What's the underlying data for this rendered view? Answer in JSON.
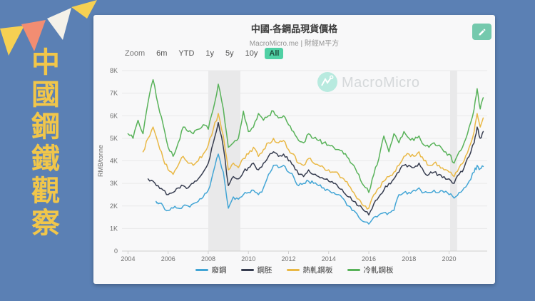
{
  "page": {
    "background_color": "#5b80b4"
  },
  "banner": {
    "text": "中國鋼鐵觀察",
    "text_color": "#f1c64a",
    "flag_colors": [
      "#f6d052",
      "#f28d72",
      "#f4f1e9",
      "#f6d052"
    ]
  },
  "card": {
    "title": "中國-各鋼品現貨價格",
    "subtitle": "MacroMicro.me | 財經M平方",
    "edit_button_color": "#74c9ad"
  },
  "icons": {
    "edit": "pencil-icon",
    "watermark_logo": "macromicro-logo-icon",
    "legend_swatch": "line-swatch-icon"
  },
  "toolbar": {
    "zoom_label": "Zoom",
    "ranges": [
      "6m",
      "YTD",
      "1y",
      "5y",
      "10y",
      "All"
    ],
    "active_range": "All",
    "active_bg": "#50d0a4"
  },
  "watermark": {
    "text": "MacroMicro",
    "logo_color": "#a8e6d8",
    "text_color": "#d5d8da"
  },
  "chart_data": {
    "type": "line",
    "title": "中國-各鋼品現貨價格",
    "source": "MacroMicro.me | 財經M平方",
    "xlabel": "",
    "ylabel": "RMB/tonne",
    "unit": "RMB/tonne",
    "ylim": [
      0,
      8000
    ],
    "ytick_labels": [
      "0",
      "1K",
      "2K",
      "3K",
      "4K",
      "5K",
      "6K",
      "7K",
      "8K"
    ],
    "xlim": [
      2003.7,
      2021.9
    ],
    "xticks": [
      2004,
      2006,
      2008,
      2010,
      2012,
      2014,
      2016,
      2018,
      2020
    ],
    "grid": "horizontal",
    "legend_position": "bottom",
    "recession_bands": [
      [
        2008.0,
        2009.6
      ],
      [
        2020.05,
        2020.4
      ]
    ],
    "series": [
      {
        "name": "廢鋼",
        "color": "#42a5d5",
        "points": [
          [
            2005.4,
            2200
          ],
          [
            2005.5,
            2100
          ],
          [
            2005.75,
            2000
          ],
          [
            2006.0,
            1800
          ],
          [
            2006.25,
            1900
          ],
          [
            2006.5,
            1900
          ],
          [
            2006.75,
            2000
          ],
          [
            2007.0,
            2000
          ],
          [
            2007.25,
            2100
          ],
          [
            2007.5,
            2200
          ],
          [
            2007.75,
            2400
          ],
          [
            2008.0,
            2700
          ],
          [
            2008.25,
            3500
          ],
          [
            2008.5,
            4300
          ],
          [
            2008.75,
            3500
          ],
          [
            2009.0,
            1900
          ],
          [
            2009.25,
            2400
          ],
          [
            2009.5,
            2300
          ],
          [
            2009.75,
            2500
          ],
          [
            2010.0,
            2600
          ],
          [
            2010.25,
            2700
          ],
          [
            2010.5,
            2500
          ],
          [
            2010.75,
            2800
          ],
          [
            2011.0,
            3400
          ],
          [
            2011.25,
            3800
          ],
          [
            2011.5,
            3700
          ],
          [
            2011.75,
            3800
          ],
          [
            2012.0,
            3500
          ],
          [
            2012.25,
            3300
          ],
          [
            2012.5,
            2900
          ],
          [
            2012.75,
            3000
          ],
          [
            2013.0,
            3100
          ],
          [
            2013.25,
            3000
          ],
          [
            2013.5,
            2900
          ],
          [
            2013.75,
            2800
          ],
          [
            2014.0,
            2700
          ],
          [
            2014.25,
            2600
          ],
          [
            2014.5,
            2500
          ],
          [
            2014.75,
            2300
          ],
          [
            2015.0,
            2000
          ],
          [
            2015.25,
            1800
          ],
          [
            2015.5,
            1500
          ],
          [
            2015.75,
            1300
          ],
          [
            2016.0,
            1200
          ],
          [
            2016.25,
            1500
          ],
          [
            2016.5,
            1600
          ],
          [
            2016.75,
            1700
          ],
          [
            2017.0,
            1700
          ],
          [
            2017.25,
            1800
          ],
          [
            2017.5,
            2500
          ],
          [
            2017.75,
            2600
          ],
          [
            2018.0,
            2600
          ],
          [
            2018.25,
            2700
          ],
          [
            2018.5,
            2800
          ],
          [
            2018.75,
            2600
          ],
          [
            2019.0,
            2600
          ],
          [
            2019.25,
            2700
          ],
          [
            2019.5,
            2600
          ],
          [
            2019.75,
            2600
          ],
          [
            2020.0,
            2500
          ],
          [
            2020.25,
            2350
          ],
          [
            2020.5,
            2600
          ],
          [
            2020.75,
            2800
          ],
          [
            2021.0,
            3100
          ],
          [
            2021.25,
            3500
          ],
          [
            2021.4,
            3800
          ],
          [
            2021.55,
            3650
          ],
          [
            2021.7,
            3750
          ]
        ]
      },
      {
        "name": "鋼胚",
        "color": "#363c4f",
        "points": [
          [
            2005.0,
            3200
          ],
          [
            2005.25,
            3100
          ],
          [
            2005.5,
            2900
          ],
          [
            2005.75,
            2700
          ],
          [
            2006.0,
            2500
          ],
          [
            2006.25,
            2600
          ],
          [
            2006.5,
            2800
          ],
          [
            2006.75,
            2900
          ],
          [
            2007.0,
            2800
          ],
          [
            2007.25,
            3000
          ],
          [
            2007.5,
            3200
          ],
          [
            2007.75,
            3500
          ],
          [
            2008.0,
            3900
          ],
          [
            2008.25,
            4800
          ],
          [
            2008.5,
            5700
          ],
          [
            2008.75,
            4600
          ],
          [
            2009.0,
            2900
          ],
          [
            2009.25,
            3300
          ],
          [
            2009.5,
            3200
          ],
          [
            2009.75,
            3500
          ],
          [
            2010.0,
            3700
          ],
          [
            2010.25,
            3900
          ],
          [
            2010.5,
            3600
          ],
          [
            2010.75,
            3900
          ],
          [
            2011.0,
            4200
          ],
          [
            2011.25,
            4400
          ],
          [
            2011.5,
            4200
          ],
          [
            2011.75,
            4300
          ],
          [
            2012.0,
            4000
          ],
          [
            2012.25,
            3800
          ],
          [
            2012.5,
            3400
          ],
          [
            2012.75,
            3300
          ],
          [
            2013.0,
            3600
          ],
          [
            2013.25,
            3400
          ],
          [
            2013.5,
            3300
          ],
          [
            2013.75,
            3200
          ],
          [
            2014.0,
            3100
          ],
          [
            2014.25,
            3000
          ],
          [
            2014.5,
            2800
          ],
          [
            2014.75,
            2600
          ],
          [
            2015.0,
            2400
          ],
          [
            2015.25,
            2200
          ],
          [
            2015.5,
            2000
          ],
          [
            2015.75,
            1800
          ],
          [
            2016.0,
            1600
          ],
          [
            2016.25,
            2100
          ],
          [
            2016.5,
            2400
          ],
          [
            2016.75,
            2700
          ],
          [
            2017.0,
            3000
          ],
          [
            2017.25,
            3200
          ],
          [
            2017.5,
            3500
          ],
          [
            2017.75,
            3800
          ],
          [
            2018.0,
            3800
          ],
          [
            2018.25,
            3700
          ],
          [
            2018.5,
            3900
          ],
          [
            2018.75,
            3500
          ],
          [
            2019.0,
            3400
          ],
          [
            2019.25,
            3500
          ],
          [
            2019.5,
            3400
          ],
          [
            2019.75,
            3300
          ],
          [
            2020.0,
            3200
          ],
          [
            2020.25,
            3000
          ],
          [
            2020.5,
            3400
          ],
          [
            2020.75,
            3700
          ],
          [
            2021.0,
            4200
          ],
          [
            2021.25,
            4800
          ],
          [
            2021.4,
            5500
          ],
          [
            2021.55,
            5000
          ],
          [
            2021.7,
            5300
          ]
        ]
      },
      {
        "name": "熱軋鋼板",
        "color": "#e9b845",
        "points": [
          [
            2004.75,
            4400
          ],
          [
            2005.0,
            5000
          ],
          [
            2005.25,
            5500
          ],
          [
            2005.5,
            4800
          ],
          [
            2005.75,
            4100
          ],
          [
            2006.0,
            3600
          ],
          [
            2006.25,
            3400
          ],
          [
            2006.5,
            3800
          ],
          [
            2006.75,
            4200
          ],
          [
            2007.0,
            3900
          ],
          [
            2007.25,
            3800
          ],
          [
            2007.5,
            4000
          ],
          [
            2007.75,
            4300
          ],
          [
            2008.0,
            4700
          ],
          [
            2008.25,
            5400
          ],
          [
            2008.5,
            6100
          ],
          [
            2008.75,
            5100
          ],
          [
            2009.0,
            3600
          ],
          [
            2009.25,
            3900
          ],
          [
            2009.5,
            3700
          ],
          [
            2009.75,
            4100
          ],
          [
            2010.0,
            4300
          ],
          [
            2010.25,
            4600
          ],
          [
            2010.5,
            4200
          ],
          [
            2010.75,
            4500
          ],
          [
            2011.0,
            4800
          ],
          [
            2011.25,
            5000
          ],
          [
            2011.5,
            4800
          ],
          [
            2011.75,
            4900
          ],
          [
            2012.0,
            4500
          ],
          [
            2012.25,
            4300
          ],
          [
            2012.5,
            3900
          ],
          [
            2012.75,
            3800
          ],
          [
            2013.0,
            4100
          ],
          [
            2013.25,
            3900
          ],
          [
            2013.5,
            3800
          ],
          [
            2013.75,
            3700
          ],
          [
            2014.0,
            3600
          ],
          [
            2014.25,
            3500
          ],
          [
            2014.5,
            3400
          ],
          [
            2014.75,
            3200
          ],
          [
            2015.0,
            2900
          ],
          [
            2015.25,
            2600
          ],
          [
            2015.5,
            2300
          ],
          [
            2015.75,
            2000
          ],
          [
            2016.0,
            1900
          ],
          [
            2016.25,
            2500
          ],
          [
            2016.5,
            2800
          ],
          [
            2016.75,
            3100
          ],
          [
            2017.0,
            3300
          ],
          [
            2017.25,
            3500
          ],
          [
            2017.5,
            3800
          ],
          [
            2017.75,
            4200
          ],
          [
            2018.0,
            4300
          ],
          [
            2018.25,
            4200
          ],
          [
            2018.5,
            4400
          ],
          [
            2018.75,
            4000
          ],
          [
            2019.0,
            3800
          ],
          [
            2019.25,
            3900
          ],
          [
            2019.5,
            3800
          ],
          [
            2019.75,
            3600
          ],
          [
            2020.0,
            3500
          ],
          [
            2020.25,
            3300
          ],
          [
            2020.5,
            3700
          ],
          [
            2020.75,
            4000
          ],
          [
            2021.0,
            4600
          ],
          [
            2021.25,
            5300
          ],
          [
            2021.4,
            6100
          ],
          [
            2021.55,
            5500
          ],
          [
            2021.7,
            5900
          ]
        ]
      },
      {
        "name": "冷軋鋼板",
        "color": "#58b259",
        "points": [
          [
            2004.0,
            5200
          ],
          [
            2004.25,
            5000
          ],
          [
            2004.5,
            5800
          ],
          [
            2004.75,
            5200
          ],
          [
            2005.0,
            6600
          ],
          [
            2005.25,
            7600
          ],
          [
            2005.5,
            6500
          ],
          [
            2005.75,
            5600
          ],
          [
            2006.0,
            4600
          ],
          [
            2006.25,
            4200
          ],
          [
            2006.5,
            4800
          ],
          [
            2006.75,
            5500
          ],
          [
            2007.0,
            5300
          ],
          [
            2007.25,
            5200
          ],
          [
            2007.5,
            5400
          ],
          [
            2007.75,
            5600
          ],
          [
            2008.0,
            5400
          ],
          [
            2008.25,
            6300
          ],
          [
            2008.5,
            7400
          ],
          [
            2008.75,
            6300
          ],
          [
            2009.0,
            4600
          ],
          [
            2009.25,
            4800
          ],
          [
            2009.5,
            5000
          ],
          [
            2009.75,
            6200
          ],
          [
            2010.0,
            5300
          ],
          [
            2010.25,
            5500
          ],
          [
            2010.5,
            6100
          ],
          [
            2010.75,
            5800
          ],
          [
            2011.0,
            6000
          ],
          [
            2011.25,
            6200
          ],
          [
            2011.5,
            5900
          ],
          [
            2011.75,
            6000
          ],
          [
            2012.0,
            5600
          ],
          [
            2012.25,
            5300
          ],
          [
            2012.5,
            4900
          ],
          [
            2012.75,
            4800
          ],
          [
            2013.0,
            5200
          ],
          [
            2013.25,
            5000
          ],
          [
            2013.5,
            4900
          ],
          [
            2013.75,
            4800
          ],
          [
            2014.0,
            4700
          ],
          [
            2014.25,
            4600
          ],
          [
            2014.5,
            4500
          ],
          [
            2014.75,
            4300
          ],
          [
            2015.0,
            4100
          ],
          [
            2015.25,
            3800
          ],
          [
            2015.5,
            3400
          ],
          [
            2015.75,
            2900
          ],
          [
            2016.0,
            2600
          ],
          [
            2016.25,
            3400
          ],
          [
            2016.5,
            4100
          ],
          [
            2016.75,
            5100
          ],
          [
            2017.0,
            4400
          ],
          [
            2017.25,
            5200
          ],
          [
            2017.5,
            4800
          ],
          [
            2017.75,
            5300
          ],
          [
            2018.0,
            5000
          ],
          [
            2018.25,
            4900
          ],
          [
            2018.5,
            5100
          ],
          [
            2018.75,
            4700
          ],
          [
            2019.0,
            4600
          ],
          [
            2019.25,
            4800
          ],
          [
            2019.5,
            4700
          ],
          [
            2019.75,
            4400
          ],
          [
            2020.0,
            4300
          ],
          [
            2020.25,
            3900
          ],
          [
            2020.5,
            4400
          ],
          [
            2020.75,
            4800
          ],
          [
            2021.0,
            5500
          ],
          [
            2021.25,
            6300
          ],
          [
            2021.4,
            7200
          ],
          [
            2021.55,
            6300
          ],
          [
            2021.7,
            6800
          ]
        ]
      }
    ]
  }
}
